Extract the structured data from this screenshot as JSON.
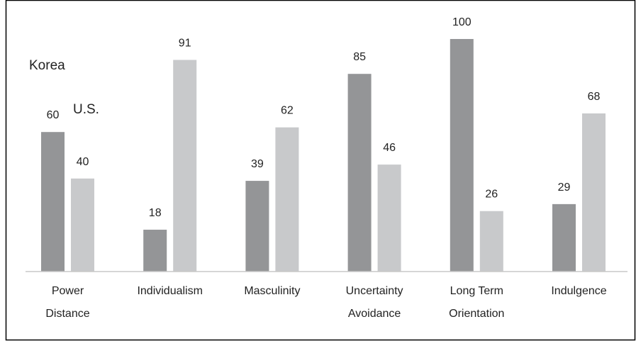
{
  "chart_data": {
    "type": "bar",
    "categories": [
      [
        "Power",
        "Distance"
      ],
      [
        "Individualism"
      ],
      [
        "Masculinity"
      ],
      [
        "Uncertainty",
        "Avoidance"
      ],
      [
        "Long Term",
        "Orientation"
      ],
      [
        "Indulgence"
      ]
    ],
    "series": [
      {
        "name": "Korea",
        "values": [
          60,
          18,
          39,
          85,
          100,
          29
        ],
        "color": "#949597"
      },
      {
        "name": "U.S.",
        "values": [
          40,
          91,
          62,
          46,
          26,
          68
        ],
        "color": "#c8c9cb"
      }
    ],
    "ylim": [
      0,
      100
    ],
    "grid": false,
    "data_labels": true,
    "legend": "embedded-text",
    "colors": {
      "border": "#000000",
      "axis": "#c8c8c8",
      "text": "#222222"
    }
  }
}
